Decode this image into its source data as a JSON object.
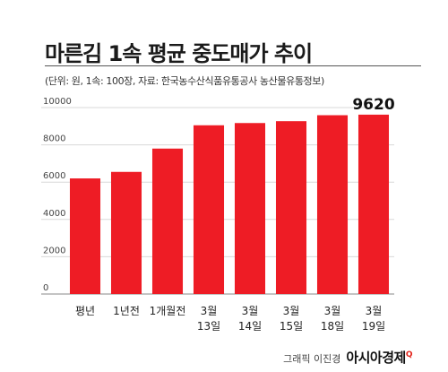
{
  "header": {
    "title": "마른김 1속 평균 중도매가 추이",
    "subtitle": "(단위: 원, 1속: 100장, 자료: 한국농수산식품유통공사 농산물유통정보)"
  },
  "chart_data": {
    "type": "bar",
    "title": "마른김 1속 평균 중도매가 추이",
    "xlabel": "",
    "ylabel": "",
    "categories": [
      [
        "평년"
      ],
      [
        "1년전"
      ],
      [
        "1개월전"
      ],
      [
        "3월",
        "13일"
      ],
      [
        "3월",
        "14일"
      ],
      [
        "3월",
        "15일"
      ],
      [
        "3월",
        "18일"
      ],
      [
        "3월",
        "19일"
      ]
    ],
    "series": [
      {
        "values": [
          6200,
          6550,
          7800,
          9050,
          9170,
          9270,
          9590,
          9620
        ]
      }
    ],
    "ylim": [
      0,
      10000
    ],
    "yticks": [
      "0",
      "2000",
      "4000",
      "6000",
      "8000",
      "10000"
    ],
    "data_labels": [
      {
        "index": 7,
        "text": "9620"
      }
    ],
    "bar_color": "#ee1c25",
    "grid": true
  },
  "credit": {
    "author": "그래픽 이진경",
    "logo": "아시아경제",
    "logo_mark": "Q"
  }
}
